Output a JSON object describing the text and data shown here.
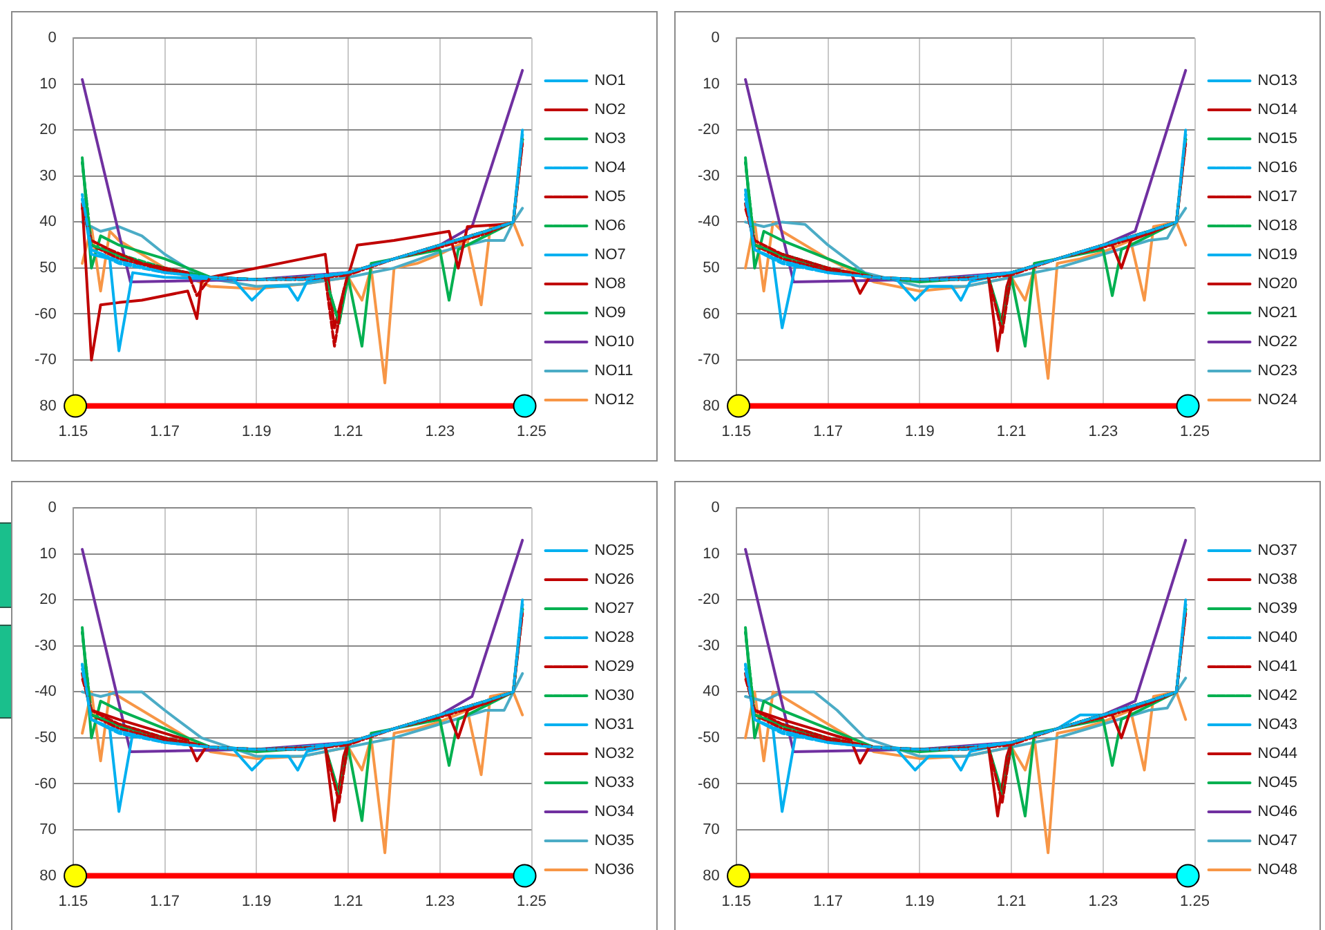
{
  "chart_data": [
    {
      "type": "line",
      "xlim": [
        1.15,
        1.25
      ],
      "ylim": [
        -80,
        0
      ],
      "xticks": [
        1.15,
        1.17,
        1.19,
        1.21,
        1.23,
        1.25
      ],
      "yticks": [
        0,
        {
          "value": -10,
          "label": "10"
        },
        {
          "value": -20,
          "label": "20"
        },
        {
          "value": -30,
          "label": "30"
        },
        {
          "value": -40,
          "label": "40"
        },
        {
          "value": -50,
          "label": "50"
        },
        -60,
        -70,
        {
          "value": -80,
          "label": "80"
        }
      ],
      "grid": true,
      "legend": "right",
      "series": [
        {
          "name": "NO1",
          "color": "#00b0f0",
          "x": [
            1.152,
            1.154,
            1.158,
            1.16,
            1.163,
            1.17,
            1.185,
            1.189,
            1.192,
            1.197,
            1.199,
            1.201,
            1.21,
            1.22,
            1.23,
            1.24,
            1.246,
            1.248
          ],
          "values": [
            -35,
            -47,
            -48,
            -68,
            -51,
            -52,
            -52.5,
            -57,
            -54,
            -54,
            -57,
            -53,
            -51,
            -48,
            -45,
            -42,
            -40,
            -20
          ]
        },
        {
          "name": "NO2",
          "color": "#c00000",
          "x": [
            1.152,
            1.154,
            1.156,
            1.16,
            1.165,
            1.175,
            1.177,
            1.178,
            1.18,
            1.19,
            1.2,
            1.205,
            1.207,
            1.209,
            1.212,
            1.22,
            1.232,
            1.234,
            1.236,
            1.244,
            1.246,
            1.248
          ],
          "values": [
            -36,
            -70,
            -58,
            -57.5,
            -57,
            -55,
            -61,
            -53,
            -52,
            -50,
            -48,
            -47,
            -63,
            -55,
            -45,
            -44,
            -42,
            -50,
            -41,
            -40.5,
            -40,
            -22
          ]
        },
        {
          "name": "NO3",
          "color": "#00b050",
          "x": [
            1.152,
            1.154,
            1.156,
            1.16,
            1.17,
            1.18,
            1.19,
            1.205,
            1.208,
            1.21,
            1.213,
            1.215,
            1.22,
            1.23,
            1.232,
            1.234,
            1.24,
            1.246,
            1.248
          ],
          "values": [
            -26,
            -50,
            -43,
            -45,
            -48,
            -52,
            -52.5,
            -52,
            -62,
            -52,
            -67,
            -49,
            -48,
            -46,
            -57,
            -46,
            -43,
            -40,
            -22
          ]
        },
        {
          "name": "NO4",
          "color": "#00b0f0",
          "line_style": "dashed",
          "x": [
            1.152,
            1.154,
            1.16,
            1.17,
            1.18,
            1.19,
            1.2,
            1.21,
            1.22,
            1.23,
            1.24,
            1.246,
            1.248
          ],
          "values": [
            -34,
            -46,
            -49,
            -51,
            -52,
            -52.5,
            -52.5,
            -51,
            -48,
            -45,
            -42,
            -40,
            -21
          ]
        },
        {
          "name": "NO5",
          "color": "#c00000",
          "line_style": "dashed",
          "x": [
            1.152,
            1.154,
            1.158,
            1.165,
            1.175,
            1.177,
            1.18,
            1.19,
            1.205,
            1.207,
            1.209,
            1.21,
            1.22,
            1.23,
            1.24,
            1.246,
            1.248
          ],
          "values": [
            -37,
            -44,
            -46,
            -49,
            -51,
            -56,
            -52,
            -52.5,
            -52,
            -67,
            -55,
            -51,
            -48,
            -45,
            -42,
            -40,
            -23
          ]
        },
        {
          "name": "NO6",
          "color": "#00b050",
          "line_style": "dashed",
          "x": [
            1.152,
            1.154,
            1.16,
            1.17,
            1.18,
            1.19,
            1.205,
            1.208,
            1.21,
            1.22,
            1.23,
            1.24,
            1.246,
            1.248
          ],
          "values": [
            -27,
            -45,
            -47,
            -50,
            -52,
            -52.5,
            -52,
            -62,
            -51,
            -48,
            -45,
            -42,
            -40,
            -22
          ]
        },
        {
          "name": "NO7",
          "color": "#00b0f0",
          "line_style": "dotted",
          "x": [
            1.152,
            1.154,
            1.16,
            1.17,
            1.18,
            1.19,
            1.2,
            1.21,
            1.22,
            1.23,
            1.24,
            1.246,
            1.248
          ],
          "values": [
            -35,
            -46,
            -48.5,
            -51,
            -52,
            -52.5,
            -52,
            -51,
            -48,
            -45,
            -42,
            -40,
            -21
          ]
        },
        {
          "name": "NO8",
          "color": "#c00000",
          "line_style": "dotted",
          "x": [
            1.152,
            1.154,
            1.16,
            1.17,
            1.18,
            1.19,
            1.2,
            1.21,
            1.22,
            1.23,
            1.24,
            1.246,
            1.248
          ],
          "values": [
            -36,
            -45,
            -48,
            -50.5,
            -52,
            -52.5,
            -52.5,
            -51.5,
            -48,
            -45.5,
            -42.5,
            -40,
            -22
          ]
        },
        {
          "name": "NO9",
          "color": "#00b050",
          "line_style": "dotted",
          "x": [
            1.152,
            1.154,
            1.16,
            1.17,
            1.18,
            1.19,
            1.2,
            1.21,
            1.22,
            1.23,
            1.24,
            1.246,
            1.248
          ],
          "values": [
            -27,
            -45,
            -47.5,
            -50.5,
            -52,
            -52.5,
            -52.5,
            -51,
            -48,
            -45,
            -42,
            -40,
            -22
          ]
        },
        {
          "name": "NO10",
          "color": "#7030a0",
          "x": [
            1.152,
            1.1625,
            1.19,
            1.21,
            1.23,
            1.237,
            1.248
          ],
          "values": [
            -9,
            -53,
            -52.5,
            -51,
            -45,
            -41,
            -7
          ]
        },
        {
          "name": "NO11",
          "color": "#4bacc6",
          "x": [
            1.152,
            1.156,
            1.16,
            1.165,
            1.17,
            1.178,
            1.19,
            1.2,
            1.21,
            1.22,
            1.23,
            1.236,
            1.24,
            1.244,
            1.246,
            1.248
          ],
          "values": [
            -40,
            -42,
            -41,
            -43,
            -47,
            -52,
            -54,
            -53.5,
            -52,
            -50,
            -46.5,
            -45,
            -44,
            -44,
            -40,
            -37
          ]
        },
        {
          "name": "NO12",
          "color": "#f79646",
          "x": [
            1.152,
            1.154,
            1.156,
            1.158,
            1.16,
            1.17,
            1.18,
            1.19,
            1.2,
            1.21,
            1.213,
            1.215,
            1.218,
            1.22,
            1.225,
            1.23,
            1.236,
            1.239,
            1.241,
            1.246,
            1.248
          ],
          "values": [
            -49,
            -41,
            -55,
            -42,
            -44,
            -50,
            -54,
            -54.5,
            -53.5,
            -52,
            -57,
            -50,
            -75,
            -50,
            -49,
            -47,
            -44,
            -58,
            -41,
            -40,
            -45
          ]
        },
        {
          "color": "#ff0000",
          "marker": "circle",
          "colors": [
            "#ffff00",
            "#00ffff"
          ],
          "x": [
            1.1505,
            1.2485
          ],
          "values": [
            -80,
            -80
          ]
        }
      ]
    },
    {
      "type": "line",
      "xlim": [
        1.15,
        1.25
      ],
      "ylim": [
        -80,
        0
      ],
      "xticks": [
        1.15,
        1.17,
        1.19,
        1.21,
        1.23,
        1.25
      ],
      "yticks": [
        0,
        {
          "value": -10,
          "label": "10"
        },
        -20,
        -30,
        -40,
        {
          "value": -50,
          "label": "50"
        },
        {
          "value": -60,
          "label": "60"
        },
        -70,
        {
          "value": -80,
          "label": "80"
        }
      ],
      "grid": true,
      "legend": "right",
      "series": [
        {
          "name": "NO13",
          "color": "#00b0f0",
          "x": [
            1.152,
            1.154,
            1.158,
            1.16,
            1.163,
            1.17,
            1.185,
            1.189,
            1.192,
            1.197,
            1.199,
            1.201,
            1.21,
            1.22,
            1.23,
            1.24,
            1.246,
            1.248
          ],
          "values": [
            -33,
            -46,
            -48,
            -63,
            -49,
            -51,
            -52.5,
            -57,
            -54,
            -54,
            -57,
            -53,
            -51,
            -48,
            -45,
            -42,
            -40,
            -20
          ]
        },
        {
          "name": "NO14",
          "color": "#c00000",
          "x": [
            1.152,
            1.154,
            1.16,
            1.17,
            1.175,
            1.177,
            1.179,
            1.19,
            1.205,
            1.207,
            1.209,
            1.21,
            1.22,
            1.23,
            1.232,
            1.234,
            1.236,
            1.246,
            1.248
          ],
          "values": [
            -36,
            -45,
            -47,
            -50,
            -51,
            -55.5,
            -52,
            -52.5,
            -52,
            -68,
            -54,
            -51,
            -48,
            -45,
            -45,
            -50,
            -44,
            -40,
            -21
          ]
        },
        {
          "name": "NO15",
          "color": "#00b050",
          "x": [
            1.152,
            1.154,
            1.156,
            1.16,
            1.17,
            1.18,
            1.19,
            1.205,
            1.208,
            1.21,
            1.213,
            1.215,
            1.22,
            1.23,
            1.232,
            1.234,
            1.24,
            1.246,
            1.248
          ],
          "values": [
            -26,
            -50,
            -42,
            -44,
            -48,
            -52,
            -53,
            -52,
            -62,
            -52,
            -67,
            -49,
            -48,
            -46,
            -56,
            -46,
            -43,
            -40,
            -22
          ]
        },
        {
          "name": "NO16",
          "color": "#00b0f0",
          "line_style": "dashed",
          "x": [
            1.152,
            1.154,
            1.16,
            1.17,
            1.18,
            1.19,
            1.2,
            1.21,
            1.22,
            1.23,
            1.24,
            1.246,
            1.248
          ],
          "values": [
            -34,
            -46,
            -49,
            -51,
            -52,
            -52.5,
            -52.5,
            -51,
            -48,
            -45,
            -42,
            -40,
            -21
          ]
        },
        {
          "name": "NO17",
          "color": "#c00000",
          "line_style": "dashed",
          "x": [
            1.152,
            1.154,
            1.16,
            1.17,
            1.18,
            1.19,
            1.205,
            1.208,
            1.21,
            1.22,
            1.23,
            1.24,
            1.246,
            1.248
          ],
          "values": [
            -37,
            -44,
            -47,
            -50,
            -52,
            -52.5,
            -52,
            -64,
            -51,
            -48,
            -45,
            -42,
            -40,
            -23
          ]
        },
        {
          "name": "NO18",
          "color": "#00b050",
          "line_style": "dashed",
          "x": [
            1.152,
            1.154,
            1.16,
            1.17,
            1.18,
            1.19,
            1.205,
            1.208,
            1.21,
            1.22,
            1.23,
            1.24,
            1.246,
            1.248
          ],
          "values": [
            -27,
            -45,
            -47,
            -50,
            -52,
            -52.5,
            -52,
            -63,
            -51,
            -48,
            -45,
            -42,
            -40,
            -22
          ]
        },
        {
          "name": "NO19",
          "color": "#00b0f0",
          "line_style": "dotted",
          "x": [
            1.152,
            1.154,
            1.16,
            1.17,
            1.18,
            1.19,
            1.2,
            1.21,
            1.22,
            1.23,
            1.24,
            1.246,
            1.248
          ],
          "values": [
            -35,
            -46,
            -48.5,
            -51,
            -52,
            -52.5,
            -52,
            -51,
            -48,
            -45,
            -42,
            -40,
            -21
          ]
        },
        {
          "name": "NO20",
          "color": "#c00000",
          "line_style": "dotted",
          "x": [
            1.152,
            1.154,
            1.16,
            1.17,
            1.18,
            1.19,
            1.2,
            1.21,
            1.22,
            1.23,
            1.24,
            1.246,
            1.248
          ],
          "values": [
            -36,
            -45,
            -48,
            -50.5,
            -52,
            -52.5,
            -52.5,
            -51.5,
            -48,
            -45.5,
            -42.5,
            -40,
            -22
          ]
        },
        {
          "name": "NO21",
          "color": "#00b050",
          "line_style": "dotted",
          "x": [
            1.152,
            1.154,
            1.16,
            1.17,
            1.18,
            1.19,
            1.2,
            1.21,
            1.22,
            1.23,
            1.24,
            1.246,
            1.248
          ],
          "values": [
            -27,
            -45,
            -47.5,
            -50.5,
            -52,
            -52.5,
            -52.5,
            -51,
            -48,
            -45,
            -42,
            -40,
            -22
          ]
        },
        {
          "name": "NO22",
          "color": "#7030a0",
          "x": [
            1.152,
            1.1625,
            1.19,
            1.21,
            1.23,
            1.237,
            1.248
          ],
          "values": [
            -9,
            -53,
            -52.5,
            -51,
            -45,
            -42,
            -7
          ]
        },
        {
          "name": "NO23",
          "color": "#4bacc6",
          "x": [
            1.152,
            1.156,
            1.16,
            1.165,
            1.17,
            1.178,
            1.19,
            1.2,
            1.21,
            1.22,
            1.23,
            1.24,
            1.244,
            1.246,
            1.248
          ],
          "values": [
            -40,
            -41,
            -40,
            -40.5,
            -45,
            -51,
            -54,
            -54,
            -52,
            -50,
            -47,
            -44,
            -43.5,
            -40,
            -37
          ]
        },
        {
          "name": "NO24",
          "color": "#f79646",
          "x": [
            1.152,
            1.154,
            1.156,
            1.158,
            1.16,
            1.17,
            1.18,
            1.19,
            1.2,
            1.21,
            1.213,
            1.215,
            1.218,
            1.22,
            1.225,
            1.23,
            1.236,
            1.239,
            1.241,
            1.246,
            1.248
          ],
          "values": [
            -50,
            -40,
            -55,
            -40,
            -42,
            -48,
            -53,
            -55,
            -54,
            -52,
            -57,
            -50,
            -74,
            -49,
            -48,
            -46.5,
            -44,
            -57,
            -41,
            -40,
            -45
          ]
        },
        {
          "color": "#ff0000",
          "marker": "circle",
          "colors": [
            "#ffff00",
            "#00ffff"
          ],
          "x": [
            1.1505,
            1.2485
          ],
          "values": [
            -80,
            -80
          ]
        }
      ]
    },
    {
      "type": "line",
      "xlim": [
        1.15,
        1.25
      ],
      "ylim": [
        -80,
        0
      ],
      "xticks": [
        1.15,
        1.17,
        1.19,
        1.21,
        1.23,
        1.25
      ],
      "yticks": [
        0,
        {
          "value": -10,
          "label": "10"
        },
        {
          "value": -20,
          "label": "20"
        },
        -30,
        -40,
        -50,
        -60,
        {
          "value": -70,
          "label": "70"
        },
        {
          "value": -80,
          "label": "80"
        }
      ],
      "grid": true,
      "legend": "right",
      "series": [
        {
          "name": "NO25",
          "color": "#00b0f0",
          "x": [
            1.152,
            1.154,
            1.158,
            1.16,
            1.163,
            1.17,
            1.185,
            1.189,
            1.192,
            1.197,
            1.199,
            1.201,
            1.21,
            1.22,
            1.23,
            1.24,
            1.246,
            1.248
          ],
          "values": [
            -34,
            -46,
            -48,
            -66,
            -49,
            -51,
            -52.5,
            -57,
            -54,
            -54,
            -57,
            -53,
            -51,
            -48,
            -45,
            -42,
            -40,
            -20
          ]
        },
        {
          "name": "NO26",
          "color": "#c00000",
          "x": [
            1.152,
            1.154,
            1.16,
            1.17,
            1.175,
            1.177,
            1.179,
            1.19,
            1.205,
            1.207,
            1.209,
            1.21,
            1.22,
            1.23,
            1.232,
            1.234,
            1.236,
            1.246,
            1.248
          ],
          "values": [
            -36,
            -44,
            -46,
            -49,
            -50.5,
            -55,
            -52,
            -52.5,
            -52,
            -68,
            -54,
            -51,
            -48,
            -45,
            -45,
            -50,
            -44,
            -40,
            -21
          ]
        },
        {
          "name": "NO27",
          "color": "#00b050",
          "x": [
            1.152,
            1.154,
            1.156,
            1.16,
            1.17,
            1.18,
            1.19,
            1.205,
            1.208,
            1.21,
            1.213,
            1.215,
            1.22,
            1.23,
            1.232,
            1.234,
            1.24,
            1.246,
            1.248
          ],
          "values": [
            -26,
            -50,
            -42,
            -44,
            -48,
            -52,
            -53,
            -52,
            -62,
            -52,
            -68,
            -49,
            -48,
            -46,
            -56,
            -46,
            -43,
            -40,
            -22
          ]
        },
        {
          "name": "NO28",
          "color": "#00b0f0",
          "line_style": "dashed",
          "x": [
            1.152,
            1.154,
            1.16,
            1.17,
            1.18,
            1.19,
            1.2,
            1.21,
            1.22,
            1.23,
            1.24,
            1.246,
            1.248
          ],
          "values": [
            -34,
            -46,
            -49,
            -51,
            -52,
            -52.5,
            -52.5,
            -51,
            -48,
            -45,
            -42,
            -40,
            -21
          ]
        },
        {
          "name": "NO29",
          "color": "#c00000",
          "line_style": "dashed",
          "x": [
            1.152,
            1.154,
            1.16,
            1.17,
            1.18,
            1.19,
            1.205,
            1.208,
            1.21,
            1.22,
            1.23,
            1.24,
            1.246,
            1.248
          ],
          "values": [
            -37,
            -44,
            -47,
            -50,
            -52,
            -52.5,
            -52,
            -64,
            -51,
            -48,
            -45,
            -42,
            -40,
            -23
          ]
        },
        {
          "name": "NO30",
          "color": "#00b050",
          "line_style": "dashed",
          "x": [
            1.152,
            1.154,
            1.16,
            1.17,
            1.18,
            1.19,
            1.205,
            1.208,
            1.21,
            1.22,
            1.23,
            1.24,
            1.246,
            1.248
          ],
          "values": [
            -27,
            -45,
            -47,
            -50,
            -52,
            -52.5,
            -52,
            -63,
            -51,
            -48,
            -45,
            -42,
            -40,
            -22
          ]
        },
        {
          "name": "NO31",
          "color": "#00b0f0",
          "line_style": "dotted",
          "x": [
            1.152,
            1.154,
            1.16,
            1.17,
            1.18,
            1.19,
            1.2,
            1.21,
            1.22,
            1.23,
            1.24,
            1.246,
            1.248
          ],
          "values": [
            -35,
            -46,
            -48.5,
            -51,
            -52,
            -52.5,
            -52,
            -51,
            -48,
            -45,
            -42,
            -40,
            -21
          ]
        },
        {
          "name": "NO32",
          "color": "#c00000",
          "line_style": "dotted",
          "x": [
            1.152,
            1.154,
            1.16,
            1.17,
            1.18,
            1.19,
            1.2,
            1.21,
            1.22,
            1.23,
            1.24,
            1.246,
            1.248
          ],
          "values": [
            -36,
            -45,
            -48,
            -50.5,
            -52,
            -52.5,
            -52.5,
            -51.5,
            -48,
            -45.5,
            -42.5,
            -40,
            -22
          ]
        },
        {
          "name": "NO33",
          "color": "#00b050",
          "line_style": "dotted",
          "x": [
            1.152,
            1.154,
            1.16,
            1.17,
            1.18,
            1.19,
            1.2,
            1.21,
            1.22,
            1.23,
            1.24,
            1.246,
            1.248
          ],
          "values": [
            -27,
            -45,
            -47.5,
            -50.5,
            -52,
            -52.5,
            -52.5,
            -51,
            -48,
            -45,
            -42,
            -40,
            -22
          ]
        },
        {
          "name": "NO34",
          "color": "#7030a0",
          "x": [
            1.152,
            1.1625,
            1.19,
            1.21,
            1.23,
            1.237,
            1.248
          ],
          "values": [
            -9,
            -53,
            -52.5,
            -51,
            -45,
            -41,
            -7
          ]
        },
        {
          "name": "NO35",
          "color": "#4bacc6",
          "x": [
            1.152,
            1.156,
            1.16,
            1.165,
            1.17,
            1.178,
            1.19,
            1.2,
            1.21,
            1.22,
            1.23,
            1.24,
            1.244,
            1.246,
            1.248
          ],
          "values": [
            -40,
            -41,
            -40,
            -40,
            -44,
            -50,
            -54,
            -54,
            -52,
            -50,
            -47,
            -44,
            -44,
            -40,
            -36
          ]
        },
        {
          "name": "NO36",
          "color": "#f79646",
          "x": [
            1.152,
            1.154,
            1.156,
            1.158,
            1.16,
            1.17,
            1.18,
            1.19,
            1.2,
            1.21,
            1.213,
            1.215,
            1.218,
            1.22,
            1.225,
            1.23,
            1.236,
            1.239,
            1.241,
            1.246,
            1.248
          ],
          "values": [
            -49,
            -40,
            -55,
            -40,
            -41,
            -47,
            -53,
            -54.5,
            -54,
            -52,
            -57,
            -50,
            -75,
            -49,
            -48,
            -46.5,
            -44,
            -58,
            -41,
            -40,
            -45
          ]
        },
        {
          "color": "#ff0000",
          "marker": "circle",
          "colors": [
            "#ffff00",
            "#00ffff"
          ],
          "x": [
            1.1505,
            1.2485
          ],
          "values": [
            -80,
            -80
          ]
        }
      ]
    },
    {
      "type": "line",
      "xlim": [
        1.15,
        1.25
      ],
      "ylim": [
        -80,
        0
      ],
      "xticks": [
        1.15,
        1.17,
        1.19,
        1.21,
        1.23,
        1.25
      ],
      "yticks": [
        0,
        {
          "value": -10,
          "label": "10"
        },
        -20,
        -30,
        {
          "value": -40,
          "label": "40"
        },
        -50,
        -60,
        {
          "value": -70,
          "label": "70"
        },
        {
          "value": -80,
          "label": "80"
        }
      ],
      "grid": true,
      "legend": "right",
      "series": [
        {
          "name": "NO37",
          "color": "#00b0f0",
          "x": [
            1.152,
            1.154,
            1.158,
            1.16,
            1.163,
            1.17,
            1.185,
            1.189,
            1.192,
            1.197,
            1.199,
            1.201,
            1.21,
            1.22,
            1.225,
            1.23,
            1.24,
            1.246,
            1.248
          ],
          "values": [
            -34,
            -46,
            -48,
            -66,
            -49,
            -51,
            -52.5,
            -57,
            -54,
            -54,
            -57,
            -53,
            -51,
            -48,
            -45,
            -45,
            -42,
            -40,
            -20
          ]
        },
        {
          "name": "NO38",
          "color": "#c00000",
          "x": [
            1.152,
            1.154,
            1.16,
            1.17,
            1.175,
            1.177,
            1.179,
            1.19,
            1.205,
            1.207,
            1.209,
            1.21,
            1.22,
            1.23,
            1.232,
            1.234,
            1.236,
            1.246,
            1.248
          ],
          "values": [
            -36,
            -44,
            -46,
            -49,
            -50.5,
            -55.5,
            -52,
            -52.5,
            -52,
            -67,
            -54,
            -51,
            -48,
            -45,
            -45,
            -50,
            -44,
            -40,
            -21
          ]
        },
        {
          "name": "NO39",
          "color": "#00b050",
          "x": [
            1.152,
            1.154,
            1.156,
            1.16,
            1.17,
            1.18,
            1.19,
            1.205,
            1.208,
            1.21,
            1.213,
            1.215,
            1.22,
            1.23,
            1.232,
            1.234,
            1.24,
            1.246,
            1.248
          ],
          "values": [
            -26,
            -50,
            -42,
            -44,
            -48,
            -52,
            -53,
            -52,
            -62,
            -52,
            -67,
            -49,
            -48,
            -46,
            -56,
            -46,
            -43,
            -40,
            -22
          ]
        },
        {
          "name": "NO40",
          "color": "#00b0f0",
          "line_style": "dashed",
          "x": [
            1.152,
            1.154,
            1.16,
            1.17,
            1.18,
            1.19,
            1.2,
            1.21,
            1.22,
            1.23,
            1.24,
            1.246,
            1.248
          ],
          "values": [
            -34,
            -46,
            -49,
            -51,
            -52,
            -52.5,
            -52.5,
            -51,
            -48,
            -45,
            -42,
            -40,
            -21
          ]
        },
        {
          "name": "NO41",
          "color": "#c00000",
          "line_style": "dashed",
          "x": [
            1.152,
            1.154,
            1.16,
            1.17,
            1.18,
            1.19,
            1.205,
            1.208,
            1.21,
            1.22,
            1.23,
            1.24,
            1.246,
            1.248
          ],
          "values": [
            -37,
            -44,
            -47,
            -50,
            -52,
            -52.5,
            -52,
            -64,
            -51,
            -48,
            -45,
            -42,
            -40,
            -23
          ]
        },
        {
          "name": "NO42",
          "color": "#00b050",
          "line_style": "dashed",
          "x": [
            1.152,
            1.154,
            1.16,
            1.17,
            1.18,
            1.19,
            1.205,
            1.208,
            1.21,
            1.22,
            1.23,
            1.24,
            1.246,
            1.248
          ],
          "values": [
            -27,
            -45,
            -47,
            -50,
            -52,
            -52.5,
            -52,
            -63,
            -51,
            -48,
            -45,
            -42,
            -40,
            -22
          ]
        },
        {
          "name": "NO43",
          "color": "#00b0f0",
          "line_style": "dotted",
          "x": [
            1.152,
            1.154,
            1.16,
            1.17,
            1.18,
            1.19,
            1.2,
            1.21,
            1.22,
            1.23,
            1.24,
            1.246,
            1.248
          ],
          "values": [
            -35,
            -46,
            -48.5,
            -51,
            -52,
            -52.5,
            -52,
            -51,
            -48,
            -45,
            -42,
            -40,
            -21
          ]
        },
        {
          "name": "NO44",
          "color": "#c00000",
          "line_style": "dotted",
          "x": [
            1.152,
            1.154,
            1.16,
            1.17,
            1.18,
            1.19,
            1.2,
            1.21,
            1.22,
            1.23,
            1.24,
            1.246,
            1.248
          ],
          "values": [
            -36,
            -45,
            -48,
            -50.5,
            -52,
            -52.5,
            -52.5,
            -51.5,
            -48,
            -45.5,
            -42.5,
            -40,
            -22
          ]
        },
        {
          "name": "NO45",
          "color": "#00b050",
          "line_style": "dotted",
          "x": [
            1.152,
            1.154,
            1.16,
            1.17,
            1.18,
            1.19,
            1.2,
            1.21,
            1.22,
            1.23,
            1.24,
            1.246,
            1.248
          ],
          "values": [
            -27,
            -45,
            -47.5,
            -50.5,
            -52,
            -52.5,
            -52.5,
            -51,
            -48,
            -45,
            -42,
            -40,
            -22
          ]
        },
        {
          "name": "NO46",
          "color": "#7030a0",
          "x": [
            1.152,
            1.1625,
            1.19,
            1.21,
            1.23,
            1.237,
            1.248
          ],
          "values": [
            -9,
            -53,
            -52.5,
            -51,
            -45,
            -42,
            -7
          ]
        },
        {
          "name": "NO47",
          "color": "#4bacc6",
          "x": [
            1.152,
            1.156,
            1.16,
            1.167,
            1.172,
            1.178,
            1.19,
            1.2,
            1.21,
            1.22,
            1.23,
            1.24,
            1.244,
            1.246,
            1.248
          ],
          "values": [
            -41,
            -42,
            -40,
            -40,
            -44,
            -50,
            -54,
            -54,
            -52,
            -50,
            -47,
            -44,
            -43.5,
            -40,
            -37
          ]
        },
        {
          "name": "NO48",
          "color": "#f79646",
          "x": [
            1.152,
            1.154,
            1.156,
            1.158,
            1.16,
            1.17,
            1.18,
            1.19,
            1.2,
            1.21,
            1.213,
            1.215,
            1.218,
            1.22,
            1.225,
            1.23,
            1.236,
            1.239,
            1.241,
            1.246,
            1.248
          ],
          "values": [
            -50,
            -40,
            -55,
            -40,
            -41,
            -47,
            -53,
            -54.5,
            -54,
            -52,
            -57,
            -50,
            -75,
            -49,
            -48,
            -46.5,
            -44,
            -57,
            -41,
            -40,
            -46
          ]
        },
        {
          "color": "#ff0000",
          "marker": "circle",
          "colors": [
            "#ffff00",
            "#00ffff"
          ],
          "x": [
            1.1505,
            1.2485
          ],
          "values": [
            -80,
            -80
          ]
        }
      ]
    }
  ]
}
